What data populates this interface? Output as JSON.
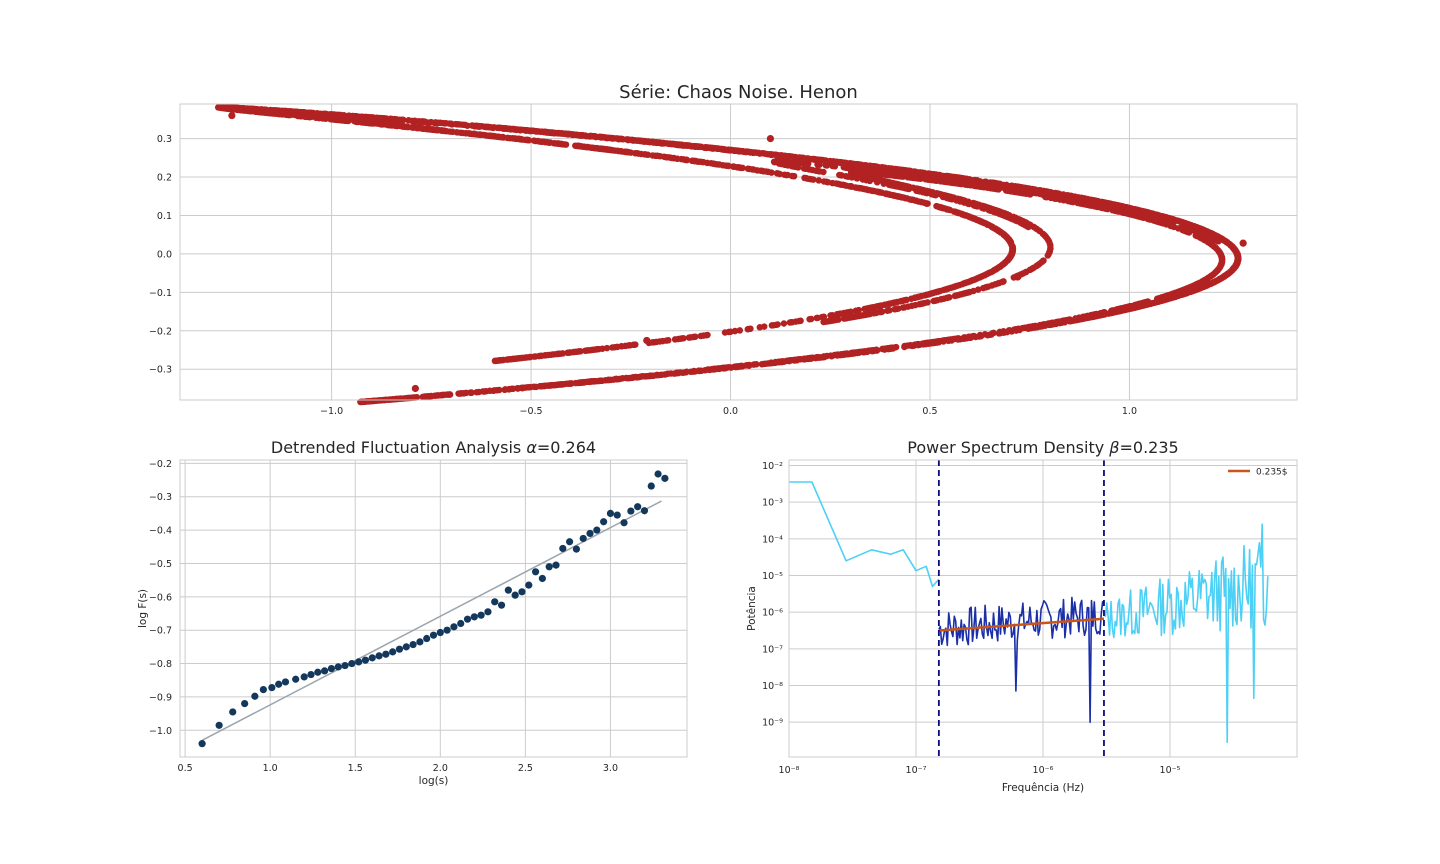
{
  "chart_data": [
    {
      "type": "scatter",
      "title": "Série: Chaos Noise. Henon",
      "xlabel": "",
      "ylabel": "",
      "xlim": [
        -1.38,
        1.42
      ],
      "ylim": [
        -0.38,
        0.39
      ],
      "xticks": [
        -1.0,
        -0.5,
        0.0,
        0.5,
        1.0
      ],
      "xtick_labels": [
        "−1.0",
        "−0.5",
        "0.0",
        "0.5",
        "1.0"
      ],
      "yticks": [
        -0.3,
        -0.2,
        -0.1,
        0.0,
        0.1,
        0.2,
        0.3
      ],
      "ytick_labels": [
        "−0.3",
        "−0.2",
        "−0.1",
        "0.0",
        "0.1",
        "0.2",
        "0.3"
      ],
      "grid": true,
      "color": "#b22222",
      "attractor": {
        "a": 1.4,
        "b": 0.3,
        "points": 6000
      },
      "outliers": [
        {
          "x": -1.25,
          "y": 0.36
        },
        {
          "x": -0.79,
          "y": -0.35
        },
        {
          "x": -0.21,
          "y": -0.225
        },
        {
          "x": 0.1,
          "y": 0.3
        },
        {
          "x": 0.72,
          "y": -0.06
        },
        {
          "x": 1.285,
          "y": 0.028
        }
      ]
    },
    {
      "type": "scatter",
      "title": "Detrended Fluctuation Analysis α=0.264",
      "title_main": "Detrended Fluctuation Analysis ",
      "title_symbol": "α",
      "title_value": "=0.264",
      "xlabel": "log(s)",
      "ylabel": "log F(s)",
      "xlim": [
        0.47,
        3.45
      ],
      "ylim": [
        -1.08,
        -0.19
      ],
      "xticks": [
        0.5,
        1.0,
        1.5,
        2.0,
        2.5,
        3.0
      ],
      "xtick_labels": [
        "0.5",
        "1.0",
        "1.5",
        "2.0",
        "2.5",
        "3.0"
      ],
      "yticks": [
        -1.0,
        -0.9,
        -0.8,
        -0.7,
        -0.6,
        -0.5,
        -0.4,
        -0.3,
        -0.2
      ],
      "ytick_labels": [
        "−1.0",
        "−0.9",
        "−0.8",
        "−0.7",
        "−0.6",
        "−0.5",
        "−0.4",
        "−0.3",
        "−0.2"
      ],
      "grid": true,
      "point_color": "#14385c",
      "fit_color": "#9aa5ae",
      "fit": {
        "x": [
          0.6,
          3.3
        ],
        "y": [
          -1.03,
          -0.313
        ]
      },
      "points": {
        "x": [
          0.6,
          0.7,
          0.78,
          0.85,
          0.91,
          0.96,
          1.01,
          1.05,
          1.09,
          1.15,
          1.2,
          1.24,
          1.28,
          1.32,
          1.36,
          1.4,
          1.44,
          1.48,
          1.52,
          1.56,
          1.6,
          1.64,
          1.68,
          1.72,
          1.76,
          1.8,
          1.84,
          1.88,
          1.92,
          1.96,
          2.0,
          2.04,
          2.08,
          2.12,
          2.16,
          2.2,
          2.24,
          2.28,
          2.32,
          2.36,
          2.4,
          2.44,
          2.48,
          2.52,
          2.56,
          2.6,
          2.64,
          2.68,
          2.72,
          2.76,
          2.8,
          2.84,
          2.88,
          2.92,
          2.96,
          3.0,
          3.04,
          3.08,
          3.12,
          3.16,
          3.2,
          3.24,
          3.28,
          3.32
        ],
        "y": [
          -1.04,
          -0.985,
          -0.945,
          -0.92,
          -0.898,
          -0.878,
          -0.872,
          -0.862,
          -0.855,
          -0.847,
          -0.84,
          -0.833,
          -0.826,
          -0.822,
          -0.815,
          -0.81,
          -0.806,
          -0.8,
          -0.795,
          -0.79,
          -0.783,
          -0.777,
          -0.772,
          -0.765,
          -0.757,
          -0.75,
          -0.743,
          -0.735,
          -0.725,
          -0.715,
          -0.707,
          -0.7,
          -0.69,
          -0.68,
          -0.667,
          -0.66,
          -0.655,
          -0.645,
          -0.615,
          -0.625,
          -0.58,
          -0.595,
          -0.585,
          -0.565,
          -0.525,
          -0.545,
          -0.51,
          -0.505,
          -0.455,
          -0.435,
          -0.457,
          -0.425,
          -0.41,
          -0.4,
          -0.375,
          -0.35,
          -0.355,
          -0.378,
          -0.343,
          -0.33,
          -0.342,
          -0.268,
          -0.232,
          -0.245
        ]
      }
    },
    {
      "type": "line",
      "title": "Power Spectrum Density β=0.235",
      "title_main": "Power Spectrum Density ",
      "title_symbol": "β",
      "title_value": "=0.235",
      "xlabel": "Frequência (Hz)",
      "ylabel": "Potência",
      "xscale": "log",
      "yscale": "log",
      "xlim_exp": [
        -8.0,
        -4.0
      ],
      "ylim_exp": [
        -9.95,
        -1.85
      ],
      "xtick_exps": [
        -8,
        -7,
        -6,
        -5
      ],
      "ytick_exps": [
        -9,
        -8,
        -7,
        -6,
        -5,
        -4,
        -3,
        -2
      ],
      "grid": true,
      "legend": {
        "label": "0.235$",
        "position": "top-right"
      },
      "vlines_exp": [
        -6.82,
        -5.52
      ],
      "vline_color": "#0a0a7a",
      "fit_color": "#c8551a",
      "fit": {
        "x_exp": [
          -6.82,
          -5.52
        ],
        "y_exp": [
          -6.5,
          -6.18
        ]
      },
      "series": [
        {
          "name": "",
          "color": "#4dd0f5",
          "role": "low",
          "x_exp": [
            -8.0,
            -7.82,
            -7.55,
            -7.35,
            -7.2,
            -7.1,
            -7.0,
            -6.92,
            -6.87,
            -6.82
          ],
          "y_exp": [
            -2.45,
            -2.45,
            -4.6,
            -4.3,
            -4.42,
            -4.3,
            -4.87,
            -4.75,
            -5.3,
            -5.1
          ]
        },
        {
          "name": "",
          "color": "#1a2fa8",
          "role": "fit-range",
          "x_exp": [
            -6.82,
            -5.52
          ],
          "noise_amp": 0.55,
          "base_y_exp": [
            -6.35,
            -5.95
          ],
          "seed": 7
        },
        {
          "name": "",
          "color": "#4dd0f5",
          "role": "high",
          "x_exp": [
            -5.52,
            -4.22
          ],
          "noise_amp": 0.7,
          "base_y_exp": [
            -6.1,
            -4.9
          ],
          "seed": 13
        }
      ],
      "spikes": [
        {
          "x_exp": -6.22,
          "y_exp": -8.15
        },
        {
          "x_exp": -5.63,
          "y_exp": -9.0
        },
        {
          "x_exp": -4.55,
          "y_exp": -9.55
        },
        {
          "x_exp": -4.35,
          "y_exp": -8.35
        },
        {
          "x_exp": -4.28,
          "y_exp": -3.6
        }
      ]
    }
  ]
}
